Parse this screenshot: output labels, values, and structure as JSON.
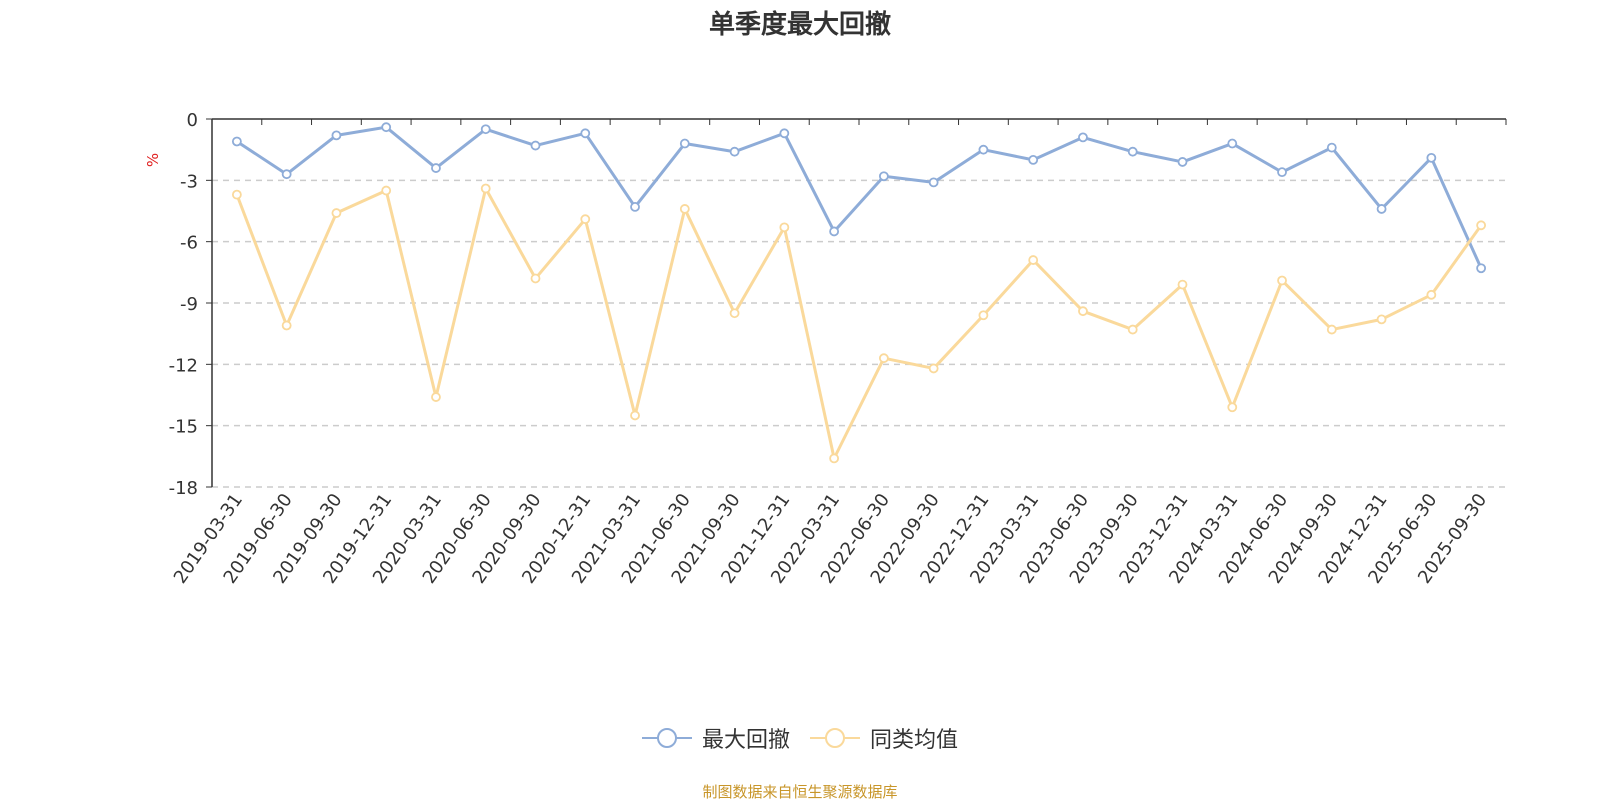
{
  "chart_data": {
    "type": "line",
    "title": "单季度最大回撤",
    "ylabel": "%",
    "ylim": [
      -18,
      0
    ],
    "yticks": [
      0,
      -3,
      -6,
      -9,
      -12,
      -15,
      -18
    ],
    "grid": true,
    "legend_position": "bottom-center",
    "categories": [
      "2019-03-31",
      "2019-06-30",
      "2019-09-30",
      "2019-12-31",
      "2020-03-31",
      "2020-06-30",
      "2020-09-30",
      "2020-12-31",
      "2021-03-31",
      "2021-06-30",
      "2021-09-30",
      "2021-12-31",
      "2022-03-31",
      "2022-06-30",
      "2022-09-30",
      "2022-12-31",
      "2023-03-31",
      "2023-06-30",
      "2023-09-30",
      "2023-12-31",
      "2024-03-31",
      "2024-06-30",
      "2024-09-30",
      "2024-12-31",
      "2025-06-30",
      "2025-09-30"
    ],
    "series": [
      {
        "name": "最大回撤",
        "color": "#8eacd8",
        "values": [
          -1.1,
          -2.7,
          -0.8,
          -0.4,
          -2.4,
          -0.5,
          -1.3,
          -0.7,
          -4.3,
          -1.2,
          -1.6,
          -0.7,
          -5.5,
          -2.8,
          -3.1,
          -1.5,
          -2.0,
          -0.9,
          -1.6,
          -2.1,
          -1.2,
          -2.6,
          -1.4,
          -4.4,
          -1.9,
          -7.3
        ]
      },
      {
        "name": "同类均值",
        "color": "#fad99b",
        "values": [
          -3.7,
          -10.1,
          -4.6,
          -3.5,
          -13.6,
          -3.4,
          -7.8,
          -4.9,
          -14.5,
          -4.4,
          -9.5,
          -5.3,
          -16.6,
          -11.7,
          -12.2,
          -9.6,
          -6.9,
          -9.4,
          -10.3,
          -8.1,
          -14.1,
          -7.9,
          -10.3,
          -9.8,
          -8.6,
          -5.2
        ]
      }
    ]
  },
  "source_note": "制图数据来自恒生聚源数据库"
}
